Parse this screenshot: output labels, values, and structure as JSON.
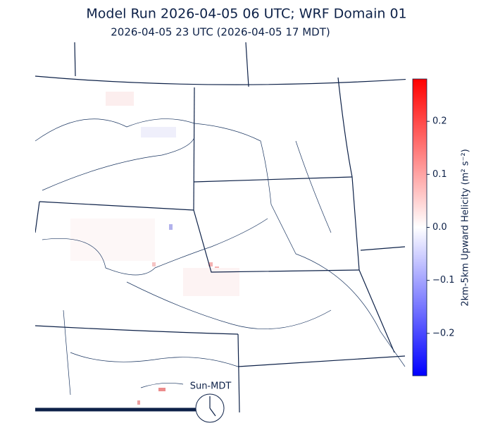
{
  "header": {
    "title": "Model Run 2026-04-05 06 UTC; WRF Domain 01",
    "subtitle": "2026-04-05 23 UTC  (2026-04-05 17 MDT)"
  },
  "colorbar": {
    "label": "2km-5km Upward Helicity (m² s⁻²)",
    "lim": [
      -0.28,
      0.28
    ],
    "ticks": [
      {
        "value": -0.2,
        "label": "−0.2"
      },
      {
        "value": -0.1,
        "label": "−0.1"
      },
      {
        "value": 0,
        "label": "0.0"
      },
      {
        "value": 0.1,
        "label": "0.1"
      },
      {
        "value": 0.2,
        "label": "0.2"
      }
    ]
  },
  "clock": {
    "label": "Sun-MDT"
  }
}
